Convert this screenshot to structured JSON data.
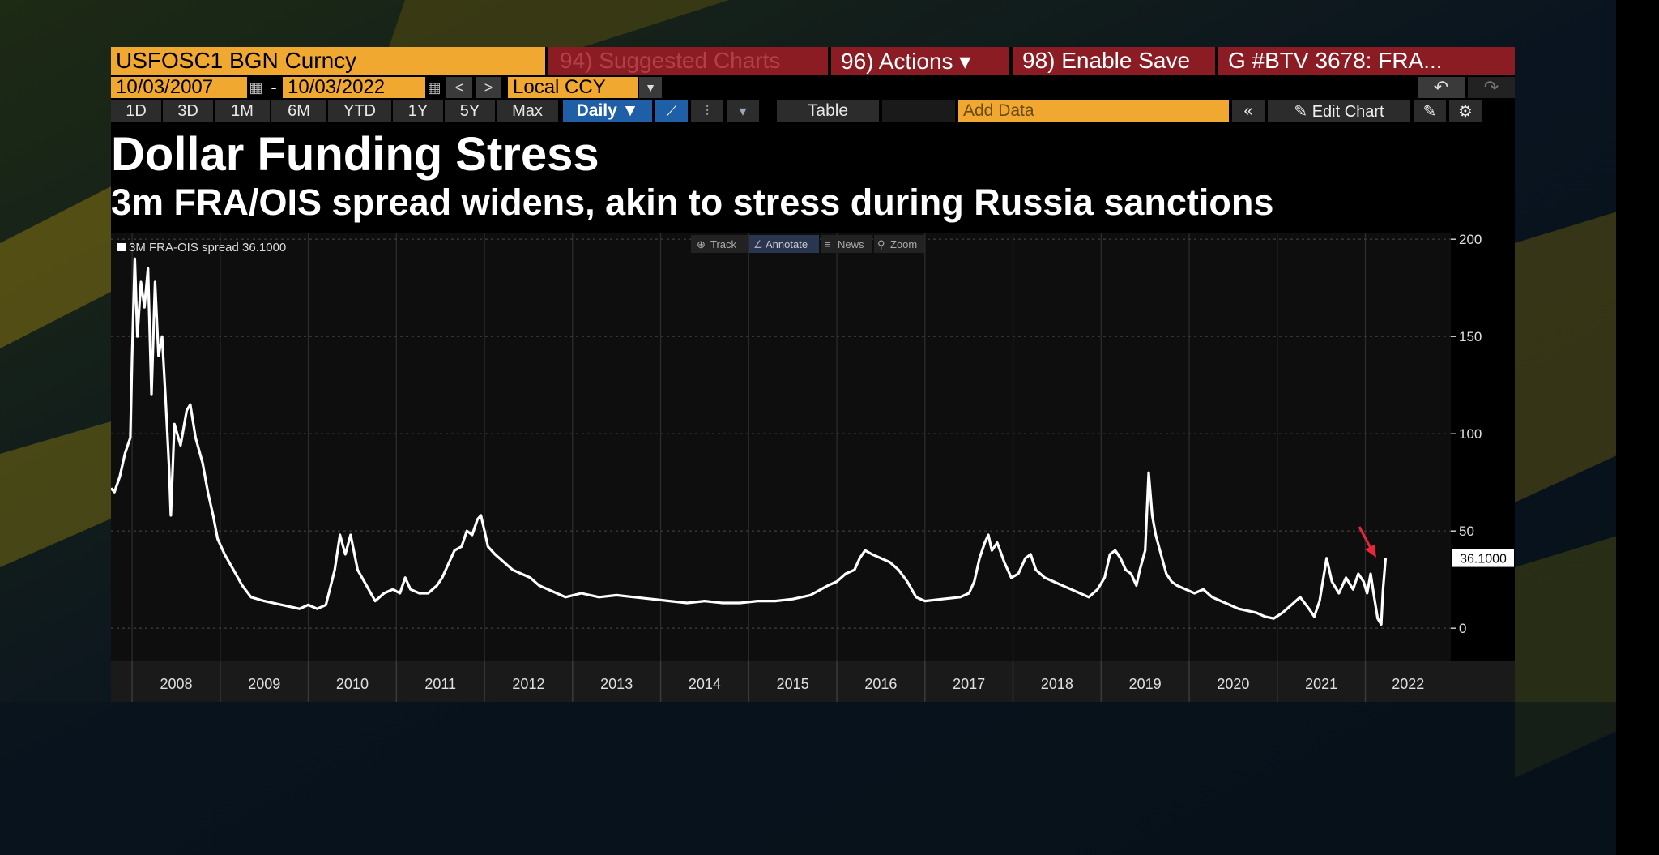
{
  "header": {
    "ticker": "USFOSC1 BGN Curncy",
    "suggested_charts": "94) Suggested Charts",
    "actions": "96) Actions ▾",
    "enable_save": "98) Enable Save",
    "chart_name": "G #BTV 3678: FRA..."
  },
  "range": {
    "start_date": "10/03/2007",
    "separator": "-",
    "end_date": "10/03/2022",
    "currency": "Local CCY"
  },
  "toolbar": {
    "periods": [
      "1D",
      "3D",
      "1M",
      "6M",
      "YTD",
      "1Y",
      "5Y",
      "Max"
    ],
    "frequency": "Daily ▼",
    "table_label": "Table",
    "add_data_placeholder": "Add Data",
    "edit_chart_label": "✎ Edit Chart"
  },
  "chart_tools": [
    "Track",
    "Annotate",
    "News",
    "Zoom"
  ],
  "colors": {
    "ticker_bg": "#f0a830",
    "menu_red": "#8b1c24",
    "selected_blue": "#1f5fa8",
    "line": "#ffffff",
    "annotation_arrow": "#e8263b"
  },
  "chart_data": {
    "type": "line",
    "title": "Dollar Funding Stress",
    "subtitle": "3m FRA/OIS spread widens, akin to stress during Russia sanctions",
    "legend": "3M FRA-OIS spread 36.1000",
    "last_value_label": "36.1000",
    "x_tick_labels": [
      "2008",
      "2009",
      "2010",
      "2011",
      "2012",
      "2013",
      "2014",
      "2015",
      "2016",
      "2017",
      "2018",
      "2019",
      "2020",
      "2021",
      "2022"
    ],
    "y_ticks": [
      0,
      50,
      100,
      150,
      200
    ],
    "y_range": [
      -17,
      203
    ],
    "x_range": [
      2007.76,
      2022.97
    ],
    "grid": true,
    "legend_position": "top-left",
    "annotation": "red arrow pointing at the early-2022 spike",
    "series": [
      {
        "name": "3M FRA-OIS spread",
        "points": [
          [
            2007.76,
            72
          ],
          [
            2007.8,
            70
          ],
          [
            2007.86,
            78
          ],
          [
            2007.92,
            90
          ],
          [
            2007.98,
            98
          ],
          [
            2008.0,
            140
          ],
          [
            2008.03,
            190
          ],
          [
            2008.06,
            150
          ],
          [
            2008.1,
            178
          ],
          [
            2008.14,
            165
          ],
          [
            2008.18,
            185
          ],
          [
            2008.22,
            120
          ],
          [
            2008.26,
            178
          ],
          [
            2008.3,
            140
          ],
          [
            2008.34,
            150
          ],
          [
            2008.38,
            118
          ],
          [
            2008.42,
            82
          ],
          [
            2008.44,
            58
          ],
          [
            2008.48,
            105
          ],
          [
            2008.55,
            94
          ],
          [
            2008.62,
            112
          ],
          [
            2008.66,
            115
          ],
          [
            2008.72,
            98
          ],
          [
            2008.8,
            85
          ],
          [
            2008.86,
            70
          ],
          [
            2008.92,
            58
          ],
          [
            2008.97,
            46
          ],
          [
            2009.05,
            38
          ],
          [
            2009.15,
            30
          ],
          [
            2009.25,
            22
          ],
          [
            2009.35,
            16
          ],
          [
            2009.5,
            14
          ],
          [
            2009.7,
            12
          ],
          [
            2009.9,
            10
          ],
          [
            2010.0,
            12
          ],
          [
            2010.1,
            10
          ],
          [
            2010.2,
            12
          ],
          [
            2010.3,
            30
          ],
          [
            2010.36,
            48
          ],
          [
            2010.42,
            38
          ],
          [
            2010.48,
            48
          ],
          [
            2010.56,
            30
          ],
          [
            2010.66,
            22
          ],
          [
            2010.76,
            14
          ],
          [
            2010.86,
            18
          ],
          [
            2010.96,
            20
          ],
          [
            2011.04,
            18
          ],
          [
            2011.1,
            26
          ],
          [
            2011.16,
            20
          ],
          [
            2011.26,
            18
          ],
          [
            2011.36,
            18
          ],
          [
            2011.46,
            22
          ],
          [
            2011.52,
            26
          ],
          [
            2011.58,
            32
          ],
          [
            2011.66,
            40
          ],
          [
            2011.74,
            42
          ],
          [
            2011.8,
            50
          ],
          [
            2011.86,
            48
          ],
          [
            2011.92,
            56
          ],
          [
            2011.96,
            58
          ],
          [
            2012.0,
            50
          ],
          [
            2012.04,
            42
          ],
          [
            2012.12,
            38
          ],
          [
            2012.22,
            34
          ],
          [
            2012.32,
            30
          ],
          [
            2012.42,
            28
          ],
          [
            2012.52,
            26
          ],
          [
            2012.62,
            22
          ],
          [
            2012.72,
            20
          ],
          [
            2012.82,
            18
          ],
          [
            2012.92,
            16
          ],
          [
            2013.1,
            18
          ],
          [
            2013.3,
            16
          ],
          [
            2013.5,
            17
          ],
          [
            2013.7,
            16
          ],
          [
            2013.9,
            15
          ],
          [
            2014.1,
            14
          ],
          [
            2014.3,
            13
          ],
          [
            2014.5,
            14
          ],
          [
            2014.7,
            13
          ],
          [
            2014.9,
            13
          ],
          [
            2015.1,
            14
          ],
          [
            2015.3,
            14
          ],
          [
            2015.5,
            15
          ],
          [
            2015.7,
            17
          ],
          [
            2015.9,
            22
          ],
          [
            2016.0,
            24
          ],
          [
            2016.1,
            28
          ],
          [
            2016.2,
            30
          ],
          [
            2016.26,
            36
          ],
          [
            2016.32,
            40
          ],
          [
            2016.4,
            38
          ],
          [
            2016.5,
            36
          ],
          [
            2016.6,
            34
          ],
          [
            2016.7,
            30
          ],
          [
            2016.8,
            24
          ],
          [
            2016.9,
            16
          ],
          [
            2017.0,
            14
          ],
          [
            2017.2,
            15
          ],
          [
            2017.4,
            16
          ],
          [
            2017.5,
            18
          ],
          [
            2017.56,
            24
          ],
          [
            2017.62,
            36
          ],
          [
            2017.68,
            44
          ],
          [
            2017.72,
            48
          ],
          [
            2017.76,
            40
          ],
          [
            2017.82,
            44
          ],
          [
            2017.9,
            34
          ],
          [
            2017.98,
            26
          ],
          [
            2018.06,
            28
          ],
          [
            2018.14,
            36
          ],
          [
            2018.2,
            38
          ],
          [
            2018.26,
            30
          ],
          [
            2018.36,
            26
          ],
          [
            2018.46,
            24
          ],
          [
            2018.56,
            22
          ],
          [
            2018.66,
            20
          ],
          [
            2018.76,
            18
          ],
          [
            2018.86,
            16
          ],
          [
            2018.96,
            20
          ],
          [
            2019.04,
            26
          ],
          [
            2019.1,
            38
          ],
          [
            2019.16,
            40
          ],
          [
            2019.22,
            36
          ],
          [
            2019.28,
            30
          ],
          [
            2019.34,
            28
          ],
          [
            2019.4,
            22
          ],
          [
            2019.44,
            30
          ],
          [
            2019.5,
            40
          ],
          [
            2019.54,
            80
          ],
          [
            2019.58,
            58
          ],
          [
            2019.62,
            48
          ],
          [
            2019.68,
            38
          ],
          [
            2019.74,
            28
          ],
          [
            2019.8,
            24
          ],
          [
            2019.86,
            22
          ],
          [
            2019.96,
            20
          ],
          [
            2020.06,
            18
          ],
          [
            2020.16,
            20
          ],
          [
            2020.26,
            16
          ],
          [
            2020.36,
            14
          ],
          [
            2020.46,
            12
          ],
          [
            2020.56,
            10
          ],
          [
            2020.66,
            9
          ],
          [
            2020.76,
            8
          ],
          [
            2020.86,
            6
          ],
          [
            2020.96,
            5
          ],
          [
            2021.06,
            8
          ],
          [
            2021.16,
            12
          ],
          [
            2021.26,
            16
          ],
          [
            2021.36,
            10
          ],
          [
            2021.42,
            6
          ],
          [
            2021.48,
            14
          ],
          [
            2021.56,
            36
          ],
          [
            2021.62,
            24
          ],
          [
            2021.7,
            18
          ],
          [
            2021.78,
            26
          ],
          [
            2021.86,
            20
          ],
          [
            2021.92,
            28
          ],
          [
            2021.98,
            24
          ],
          [
            2022.02,
            18
          ],
          [
            2022.06,
            28
          ],
          [
            2022.1,
            16
          ],
          [
            2022.14,
            5
          ],
          [
            2022.18,
            2
          ],
          [
            2022.2,
            20
          ],
          [
            2022.23,
            36.1
          ]
        ]
      }
    ]
  }
}
